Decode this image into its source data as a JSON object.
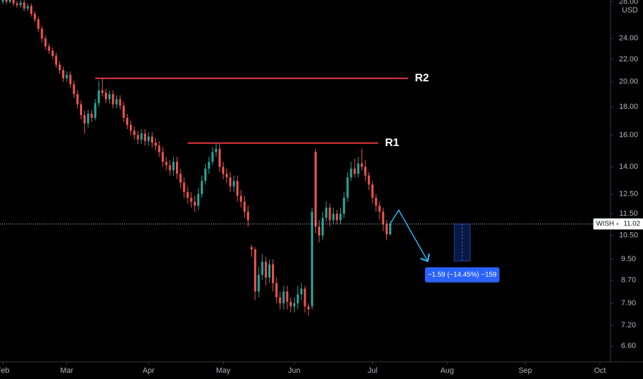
{
  "chart_data": {
    "type": "candlestick",
    "currency": "USD",
    "symbol": "WISH",
    "last_price": 11.02,
    "log_scale": true,
    "grid": false,
    "up_color": "#26a69a",
    "down_color": "#ef5350",
    "level_color": "#f23645",
    "measure_color": "#2962ff",
    "xlim": [
      -18.8,
      153
    ],
    "xticks": [
      {
        "value": -18,
        "label": "Feb"
      },
      {
        "value": 0,
        "label": "Mar"
      },
      {
        "value": 23,
        "label": "Apr"
      },
      {
        "value": 44,
        "label": "May"
      },
      {
        "value": 64,
        "label": "Jun"
      },
      {
        "value": 86,
        "label": "Jul"
      },
      {
        "value": 107,
        "label": "Aug"
      },
      {
        "value": 129,
        "label": "Sep"
      },
      {
        "value": 150,
        "label": "Oct"
      }
    ],
    "ylim": [
      6.18,
      28.2
    ],
    "yticks": [
      {
        "value": 28,
        "label": "28.00"
      },
      {
        "value": 24,
        "label": "24.00"
      },
      {
        "value": 22,
        "label": "22.00"
      },
      {
        "value": 20,
        "label": "20.00"
      },
      {
        "value": 18,
        "label": "18.00"
      },
      {
        "value": 16,
        "label": "16.00"
      },
      {
        "value": 14,
        "label": "14.00"
      },
      {
        "value": 12.5,
        "label": "12.50"
      },
      {
        "value": 11.5,
        "label": "11.50"
      },
      {
        "value": 10.5,
        "label": "10.50"
      },
      {
        "value": 9.5,
        "label": "9.50"
      },
      {
        "value": 8.7,
        "label": "8.70"
      },
      {
        "value": 7.9,
        "label": "7.90"
      },
      {
        "value": 7.2,
        "label": "7.20"
      },
      {
        "value": 6.6,
        "label": "6.60"
      }
    ],
    "x": [
      -18,
      -17,
      -16,
      -15,
      -14,
      -13,
      -12,
      -11,
      -10,
      -9,
      -8,
      -7,
      -6,
      -5,
      -4,
      -3,
      -2,
      -1,
      0,
      1,
      2,
      3,
      4,
      5,
      6,
      7,
      8,
      9,
      10,
      11,
      12,
      13,
      14,
      15,
      16,
      17,
      18,
      19,
      20,
      21,
      22,
      23,
      24,
      25,
      26,
      27,
      28,
      29,
      30,
      31,
      32,
      33,
      34,
      35,
      36,
      37,
      38,
      39,
      40,
      41,
      42,
      43,
      44,
      45,
      46,
      47,
      48,
      49,
      50,
      51,
      52,
      53,
      54,
      55,
      56,
      57,
      58,
      59,
      60,
      61,
      62,
      63,
      64,
      65,
      66,
      67,
      68,
      69,
      70,
      71,
      72,
      73,
      74,
      75,
      76,
      77,
      78,
      79,
      80,
      81,
      82,
      83,
      84,
      85,
      86,
      87,
      88,
      89,
      90,
      91
    ],
    "open": [
      28.0,
      28.3,
      28.0,
      28.4,
      27.8,
      27.6,
      27.9,
      27.2,
      27.5,
      26.6,
      26.0,
      25.0,
      24.0,
      23.2,
      22.8,
      22.3,
      21.5,
      21.0,
      20.3,
      20.6,
      19.8,
      19.0,
      18.2,
      17.4,
      16.8,
      17.5,
      17.2,
      18.3,
      19.3,
      19.1,
      18.6,
      19.0,
      18.2,
      18.6,
      18.1,
      17.2,
      16.7,
      16.3,
      16.0,
      15.7,
      16.1,
      15.6,
      15.9,
      15.5,
      15.3,
      14.9,
      14.3,
      14.1,
      13.8,
      14.3,
      13.6,
      13.1,
      12.6,
      12.3,
      12.1,
      11.9,
      12.5,
      13.2,
      13.9,
      14.3,
      14.9,
      15.1,
      14.0,
      13.6,
      13.4,
      12.9,
      13.2,
      12.4,
      12.1,
      11.6,
      10.0,
      9.9,
      8.3,
      8.9,
      9.4,
      8.8,
      9.3,
      8.6,
      8.1,
      7.9,
      8.3,
      7.95,
      7.8,
      7.9,
      8.2,
      8.4,
      7.8,
      7.8,
      14.9,
      10.9,
      10.5,
      11.3,
      11.8,
      11.2,
      11.5,
      11.2,
      11.5,
      12.3,
      13.4,
      13.9,
      13.6,
      14.2,
      14.0,
      13.5,
      13.0,
      12.3,
      11.9,
      11.6,
      11.0,
      10.55
    ],
    "high": [
      28.6,
      28.6,
      28.7,
      28.6,
      28.1,
      28.2,
      28.2,
      27.8,
      27.8,
      26.9,
      26.3,
      25.3,
      24.3,
      23.5,
      23.1,
      22.6,
      21.8,
      21.3,
      20.9,
      20.9,
      20.1,
      19.3,
      18.5,
      17.7,
      17.8,
      17.8,
      18.6,
      20.1,
      20.3,
      19.4,
      19.3,
      19.3,
      18.9,
      18.9,
      18.4,
      17.5,
      17.0,
      16.6,
      16.3,
      16.4,
      16.4,
      16.2,
      16.2,
      15.8,
      15.6,
      15.2,
      14.6,
      14.4,
      14.6,
      14.6,
      13.9,
      13.4,
      12.9,
      12.6,
      12.4,
      12.8,
      13.5,
      14.2,
      14.6,
      15.2,
      15.5,
      15.4,
      14.3,
      13.9,
      13.7,
      13.5,
      13.5,
      12.7,
      12.4,
      11.9,
      10.1,
      10.0,
      9.2,
      9.7,
      9.6,
      9.5,
      9.5,
      8.8,
      8.3,
      8.5,
      8.5,
      8.1,
      8.1,
      8.5,
      8.6,
      8.5,
      7.9,
      11.8,
      15.1,
      11.2,
      11.6,
      12.1,
      12.0,
      11.8,
      11.7,
      11.8,
      12.6,
      13.7,
      14.3,
      14.5,
      14.6,
      15.1,
      14.4,
      13.7,
      13.2,
      12.5,
      12.1,
      11.8,
      11.2,
      11.1
    ],
    "low": [
      27.7,
      27.7,
      27.8,
      27.5,
      27.3,
      27.3,
      26.9,
      26.9,
      26.3,
      25.7,
      24.7,
      23.6,
      22.9,
      22.5,
      22.0,
      21.2,
      20.7,
      20.0,
      20.0,
      19.5,
      18.7,
      17.9,
      17.1,
      16.1,
      16.5,
      16.9,
      17.0,
      18.0,
      18.8,
      18.3,
      18.3,
      17.9,
      17.9,
      17.8,
      16.9,
      16.4,
      16.0,
      15.7,
      15.4,
      15.4,
      15.3,
      15.3,
      15.2,
      15.0,
      14.6,
      14.0,
      13.8,
      13.5,
      13.5,
      13.3,
      12.8,
      12.3,
      12.0,
      11.8,
      11.6,
      11.7,
      12.3,
      13.0,
      13.6,
      14.1,
      14.6,
      13.7,
      13.3,
      13.1,
      12.6,
      12.6,
      12.1,
      11.8,
      11.3,
      10.9,
      9.6,
      8.0,
      8.1,
      8.7,
      8.5,
      8.6,
      8.3,
      7.9,
      7.7,
      7.7,
      7.7,
      7.6,
      7.6,
      7.7,
      8.0,
      7.6,
      7.5,
      7.7,
      10.6,
      10.2,
      10.3,
      11.1,
      10.9,
      11.0,
      11.0,
      11.0,
      11.3,
      12.1,
      13.2,
      13.4,
      13.4,
      13.8,
      13.2,
      12.7,
      12.0,
      11.6,
      11.2,
      10.7,
      10.3,
      10.5
    ],
    "close": [
      28.3,
      28.0,
      28.4,
      27.8,
      27.6,
      27.9,
      27.2,
      27.5,
      26.6,
      26.0,
      25.0,
      24.0,
      23.2,
      22.8,
      22.3,
      21.5,
      21.0,
      20.3,
      20.6,
      19.8,
      19.0,
      18.2,
      17.4,
      16.8,
      17.5,
      17.2,
      18.3,
      19.3,
      19.1,
      18.6,
      19.0,
      18.2,
      18.6,
      18.1,
      17.2,
      16.7,
      16.3,
      16.0,
      15.7,
      16.1,
      15.6,
      15.9,
      15.5,
      15.3,
      14.9,
      14.3,
      14.1,
      13.8,
      14.3,
      13.6,
      13.1,
      12.6,
      12.3,
      12.1,
      11.9,
      12.5,
      13.2,
      13.9,
      14.3,
      14.9,
      15.1,
      14.0,
      13.6,
      13.4,
      12.9,
      13.2,
      12.4,
      12.1,
      11.6,
      11.2,
      9.9,
      8.3,
      8.9,
      9.4,
      8.8,
      9.3,
      8.6,
      8.1,
      7.9,
      8.3,
      7.95,
      7.8,
      7.9,
      8.2,
      8.4,
      7.8,
      7.7,
      11.6,
      10.9,
      10.5,
      11.3,
      11.8,
      11.2,
      11.5,
      11.2,
      11.5,
      12.3,
      13.4,
      13.9,
      13.6,
      14.2,
      14.0,
      13.5,
      13.0,
      12.3,
      11.9,
      11.6,
      11.0,
      10.55,
      11.02
    ],
    "levels": [
      {
        "label": "R2",
        "value": 20.3,
        "x": [
          8,
          96
        ]
      },
      {
        "label": "R1",
        "value": 15.47,
        "x": [
          34,
          87.6
        ]
      }
    ],
    "measure": {
      "from": 11.02,
      "to": 9.43,
      "x": [
        109,
        113.5
      ],
      "label": "−1.59 (−14.45%) −159"
    }
  }
}
